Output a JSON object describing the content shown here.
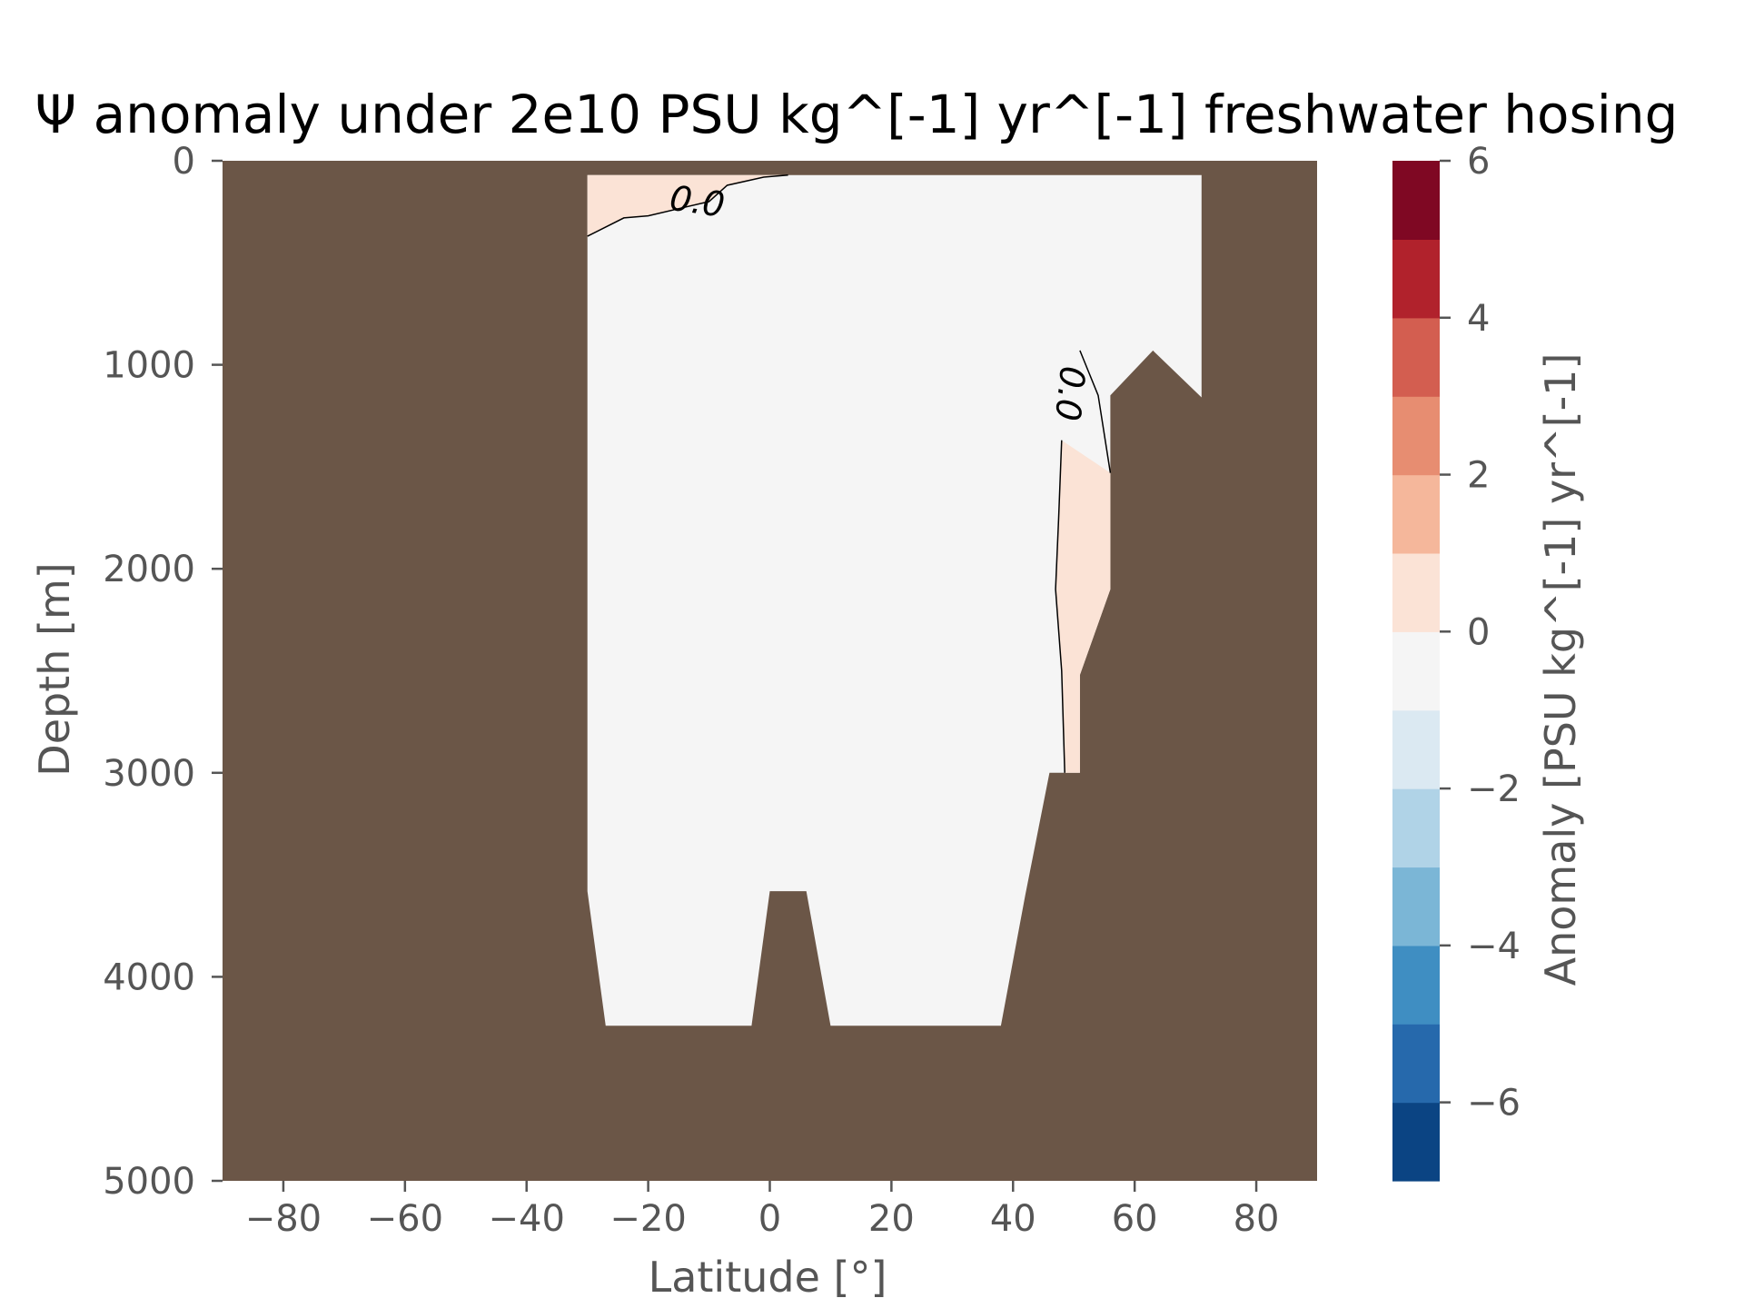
{
  "chart_data": {
    "type": "heatmap",
    "title": "Ψ anomaly under 2e10 PSU kg^[-1] yr^[-1] freshwater hosing",
    "xlabel": "Latitude [°]",
    "ylabel": "Depth [m]",
    "xlim": [
      -90,
      90
    ],
    "ylim": [
      5000,
      0
    ],
    "x_ticks": [
      -80,
      -60,
      -40,
      -20,
      0,
      20,
      40,
      60,
      80
    ],
    "x_tick_labels": [
      "−80",
      "−60",
      "−40",
      "−20",
      "0",
      "20",
      "40",
      "60",
      "80"
    ],
    "y_ticks": [
      0,
      1000,
      2000,
      3000,
      4000,
      5000
    ],
    "y_tick_labels": [
      "0",
      "1000",
      "2000",
      "3000",
      "4000",
      "5000"
    ],
    "colors": {
      "land": "#6b5647",
      "ocean_background": "#f5f5f5",
      "contour_line": "#000000"
    },
    "land_mask_outline": [
      [
        -30,
        70
      ],
      [
        71,
        70
      ],
      [
        71,
        1160
      ],
      [
        63,
        930
      ],
      [
        56,
        1150
      ],
      [
        56,
        2100
      ],
      [
        51,
        2520
      ],
      [
        51,
        3000
      ],
      [
        46,
        3000
      ],
      [
        42,
        3600
      ],
      [
        38,
        4240
      ],
      [
        10,
        4240
      ],
      [
        6,
        3580
      ],
      [
        0,
        3580
      ],
      [
        -3,
        4240
      ],
      [
        -27,
        4240
      ],
      [
        -30,
        3580
      ]
    ],
    "anomaly_regions": [
      {
        "level_range": [
          0,
          1
        ],
        "color": "#fbe3d6",
        "polygon": [
          [
            -30,
            70
          ],
          [
            3,
            70
          ],
          [
            -1,
            80
          ],
          [
            -7,
            120
          ],
          [
            -10,
            200
          ],
          [
            -20,
            270
          ],
          [
            -24,
            280
          ],
          [
            -30,
            370
          ]
        ]
      },
      {
        "level_range": [
          0,
          1
        ],
        "color": "#fbe3d6",
        "polygon": [
          [
            48,
            1370
          ],
          [
            56,
            1530
          ],
          [
            56,
            2100
          ],
          [
            51,
            2520
          ],
          [
            51,
            3000
          ],
          [
            48.5,
            3000
          ],
          [
            48,
            2500
          ],
          [
            47,
            2100
          ],
          [
            47.5,
            1750
          ]
        ]
      }
    ],
    "contours": [
      {
        "level": 0.0,
        "label": "0.0",
        "points": [
          [
            -30,
            370
          ],
          [
            -24,
            280
          ],
          [
            -20,
            270
          ],
          [
            -10,
            200
          ],
          [
            -7,
            120
          ],
          [
            -1,
            80
          ],
          [
            3,
            70
          ]
        ]
      },
      {
        "level": 0.0,
        "label": "0.0",
        "points": [
          [
            51,
            930
          ],
          [
            54,
            1150
          ],
          [
            56,
            1530
          ]
        ]
      },
      {
        "level": 0.0,
        "label": "",
        "points": [
          [
            48,
            1370
          ],
          [
            47.5,
            1750
          ],
          [
            47,
            2100
          ],
          [
            48,
            2500
          ],
          [
            48.5,
            3000
          ]
        ]
      }
    ],
    "contour_labels": [
      {
        "text": "0.0",
        "x": -12,
        "y": 210,
        "rotation": 8
      },
      {
        "text": "0.0",
        "x": 49,
        "y": 1140,
        "rotation": 96
      }
    ],
    "colorbar": {
      "label": "Anomaly [PSU kg^[-1] yr^[-1]",
      "levels": [
        -7,
        -6,
        -5,
        -4,
        -3,
        -2,
        -1,
        0,
        1,
        2,
        3,
        4,
        5,
        6
      ],
      "colors": [
        "#0b4483",
        "#2669ac",
        "#3f8ec2",
        "#7bb6d6",
        "#b0d3e7",
        "#dbe9f2",
        "#f5f5f5",
        "#fbe3d6",
        "#f5b79b",
        "#e78d71",
        "#d35e50",
        "#b1222c",
        "#7f0823"
      ],
      "ticks": [
        -6,
        -4,
        -2,
        0,
        2,
        4,
        6
      ],
      "tick_labels": [
        "−6",
        "−4",
        "−2",
        "0",
        "2",
        "4",
        "6"
      ]
    }
  }
}
